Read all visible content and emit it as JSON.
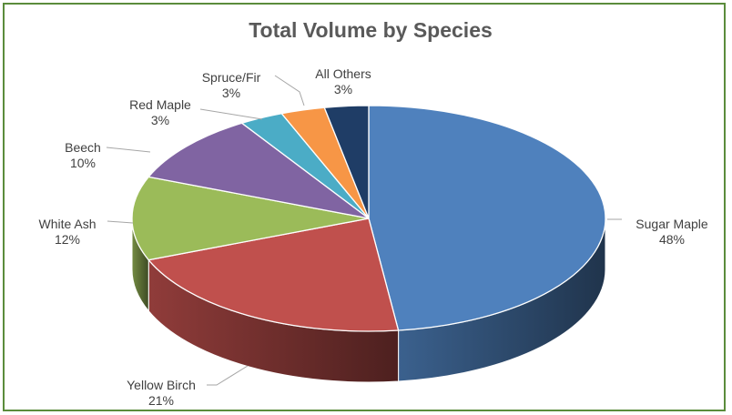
{
  "chart_data": {
    "type": "pie",
    "title": "Total Volume by Species",
    "slices": [
      {
        "name": "Sugar Maple",
        "value": 48,
        "label": "48%",
        "color": "#4f81bd"
      },
      {
        "name": "Yellow Birch",
        "value": 21,
        "label": "21%",
        "color": "#c0504d"
      },
      {
        "name": "White Ash",
        "value": 12,
        "label": "12%",
        "color": "#9bbb59"
      },
      {
        "name": "Beech",
        "value": 10,
        "label": "10%",
        "color": "#8064a2"
      },
      {
        "name": "Red Maple",
        "value": 3,
        "label": "3%",
        "color": "#4bacc6"
      },
      {
        "name": "Spruce/Fir",
        "value": 3,
        "label": "3%",
        "color": "#f79646"
      },
      {
        "name": "All Others",
        "value": 3,
        "label": "3%",
        "color": "#1f3d66"
      }
    ],
    "legend": "none",
    "style": "3d"
  }
}
